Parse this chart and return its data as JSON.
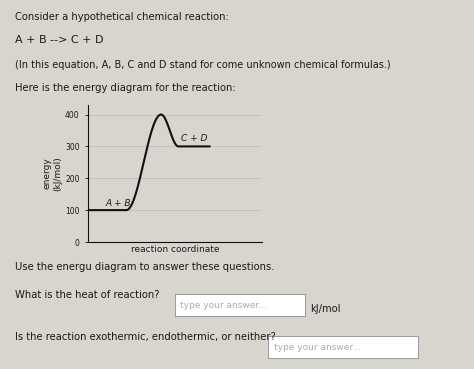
{
  "title_text": "Consider a hypothetical chemical reaction:",
  "reaction": "A + B --> C + D",
  "note": "(In this equation, A, B, C and D stand for come unknown chemical formulas.)",
  "diagram_label": "Here is the energy diagram for the reaction:",
  "ylabel": "energy\n(kJ/mol)",
  "xlabel": "reaction coordinate",
  "yticks": [
    0,
    100,
    200,
    300,
    400
  ],
  "ylim": [
    0,
    430
  ],
  "reactant_label": "A + B",
  "product_label": "C + D",
  "reactant_energy": 100,
  "product_energy": 300,
  "peak_energy": 400,
  "use_text1": "Use the energu diagram to answer these questions.",
  "q1": "What is the heat of reaction?",
  "q1_answer_placeholder": "type your answer...",
  "q1_unit": "kJ/mol",
  "q2": "Is the reaction exothermic, endothermic, or neither?",
  "q2_answer_placeholder": "type your answer...",
  "bg_color": "#d8d4ce",
  "plot_bg": "#d8d4ce",
  "line_color": "#111111",
  "text_color": "#1a1a1a",
  "box_color": "#ffffff",
  "grid_color": "#bbbbbb"
}
